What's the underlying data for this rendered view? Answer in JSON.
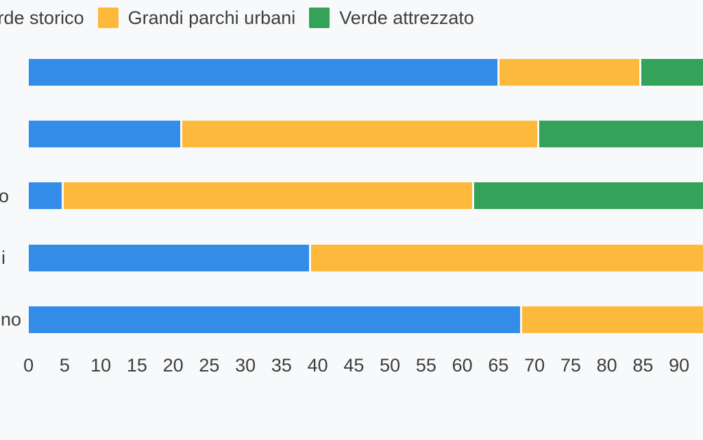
{
  "page": {
    "background": "#F8F9FA",
    "text_color": "#3D3D3D"
  },
  "legend": {
    "items": [
      {
        "label": "Verde storico",
        "visible_text": "rde storico",
        "color": "#328CE8",
        "swatch_visible": false
      },
      {
        "label": "Grandi parchi urbani",
        "visible_text": "Grandi parchi urbani",
        "color": "#FDB93C",
        "swatch_visible": true
      },
      {
        "label": "Verde attrezzato",
        "visible_text": "Verde attrezzato",
        "color": "#34A359",
        "swatch_visible": true
      }
    ]
  },
  "chart_data": {
    "type": "bar",
    "variant": "horizontal-stacked",
    "title": "",
    "xlabel": "",
    "ylabel": "",
    "series": [
      {
        "name": "Verde storico",
        "color": "#328CE8"
      },
      {
        "name": "Grandi parchi urbani",
        "color": "#FDB93C"
      },
      {
        "name": "Verde attrezzato",
        "color": "#34A359"
      }
    ],
    "rows": [
      {
        "y_label_visible": "",
        "segments": [
          {
            "series": 0,
            "value": 64.9
          },
          {
            "series": 1,
            "value": 19.6
          },
          {
            "series": 2,
            "value": null
          }
        ]
      },
      {
        "y_label_visible": "",
        "segments": [
          {
            "series": 0,
            "value": 21.0
          },
          {
            "series": 1,
            "value": 49.4
          },
          {
            "series": 2,
            "value": null
          }
        ]
      },
      {
        "y_label_visible": "o",
        "segments": [
          {
            "series": 0,
            "value": 4.6
          },
          {
            "series": 1,
            "value": 56.8
          },
          {
            "series": 2,
            "value": null
          }
        ]
      },
      {
        "y_label_visible": "i",
        "segments": [
          {
            "series": 0,
            "value": 38.8
          },
          {
            "series": 1,
            "value": null
          }
        ]
      },
      {
        "y_label_visible": "no",
        "segments": [
          {
            "series": 0,
            "value": 68.0
          },
          {
            "series": 1,
            "value": null
          }
        ]
      }
    ],
    "x_ticks": [
      0,
      5,
      10,
      15,
      20,
      25,
      30,
      35,
      40,
      45,
      50,
      55,
      60,
      65,
      70,
      75,
      80,
      85,
      90
    ],
    "x_axis_visible_max": 93.3,
    "grid": false,
    "legend_position": "top",
    "clipping_note": "Screenshot is a crop of a larger chart: left edge cuts the first legend swatch/label and the y-axis category labels; right edge cuts the final segment of every bar; null segment values denote clipped segments of unknown total."
  }
}
